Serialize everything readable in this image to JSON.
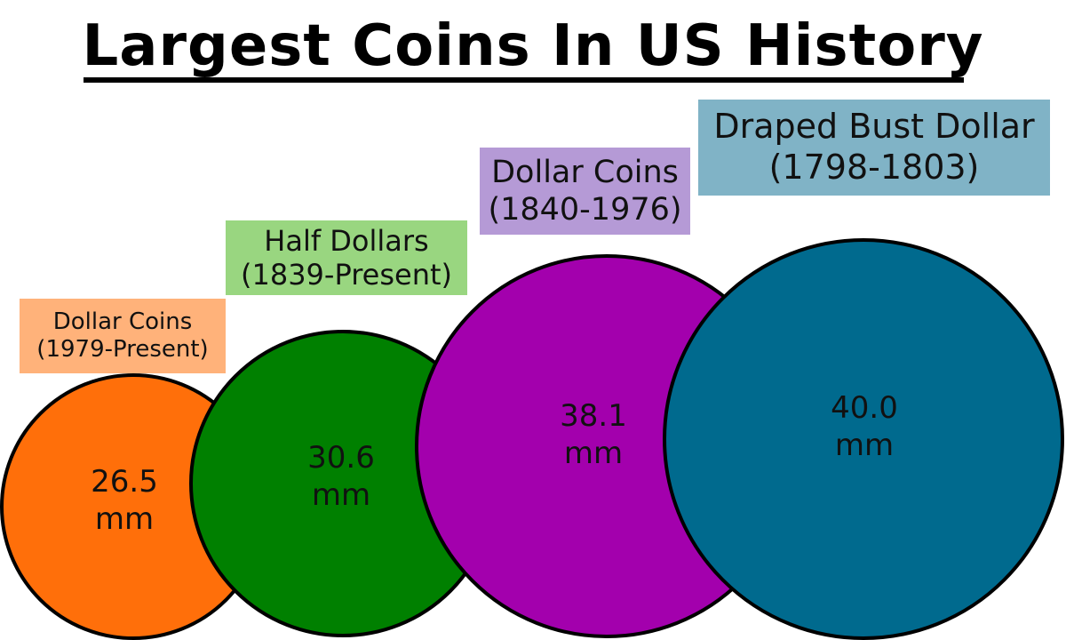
{
  "title": "Largest Coins In US History",
  "coins": [
    {
      "name_line1": "Dollar Coins",
      "name_line2": "(1979-Present)",
      "diameter": "26.5",
      "unit": "mm",
      "color": "#ff6f0a",
      "label_color": "#ffb27a"
    },
    {
      "name_line1": "Half Dollars",
      "name_line2": "(1839-Present)",
      "diameter": "30.6",
      "unit": "mm",
      "color": "#008000",
      "label_color": "#99d680"
    },
    {
      "name_line1": "Dollar Coins",
      "name_line2": "(1840-1976)",
      "diameter": "38.1",
      "unit": "mm",
      "color": "#a300ad",
      "label_color": "#b59ad6"
    },
    {
      "name_line1": "Draped Bust Dollar",
      "name_line2": "(1798-1803)",
      "diameter": "40.0",
      "unit": "mm",
      "color": "#006a8e",
      "label_color": "#80b3c6"
    }
  ]
}
